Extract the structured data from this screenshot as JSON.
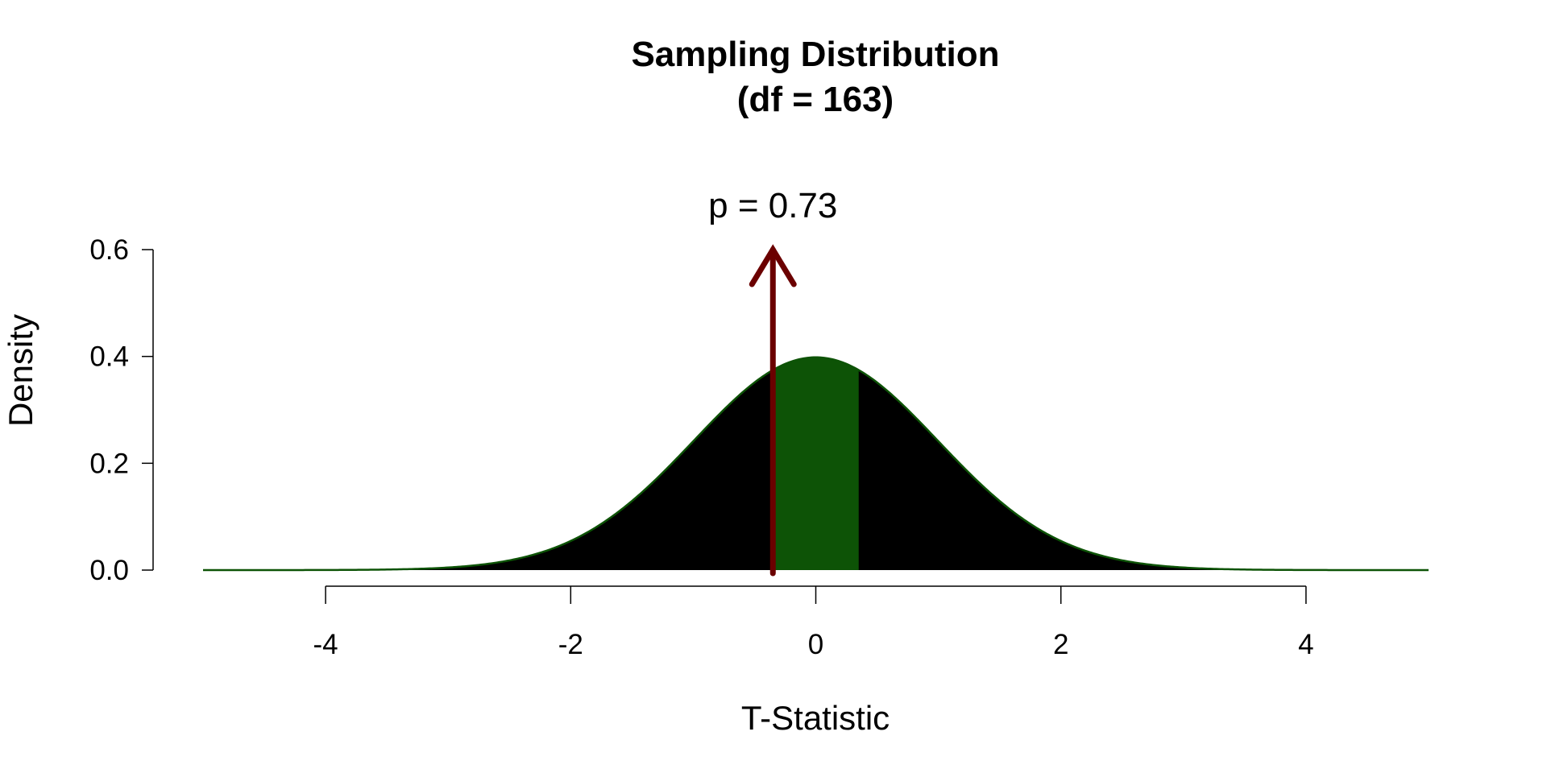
{
  "chart_data": {
    "type": "area",
    "title": "Sampling Distribution",
    "subtitle": "(df = 163)",
    "xlabel": "T-Statistic",
    "ylabel": "Density",
    "xlim": [
      -5,
      5
    ],
    "ylim": [
      0,
      0.6
    ],
    "x_ticks": [
      -4,
      -2,
      0,
      2,
      4
    ],
    "x_tick_labels": [
      "-4",
      "-2",
      "0",
      "2",
      "4"
    ],
    "y_ticks": [
      0.0,
      0.2,
      0.4,
      0.6
    ],
    "y_tick_labels": [
      "0.0",
      "0.2",
      "0.4",
      "0.6"
    ],
    "df": 163,
    "observed_t": -0.35,
    "central_region": [
      -0.35,
      0.35
    ],
    "annotation": "p = 0.73",
    "colors": {
      "curve_fill": "#000000",
      "central_region_fill": "#0d5306",
      "curve_line": "#0d5306",
      "arrow": "#6b0000"
    },
    "grid": false,
    "legend": "none"
  }
}
